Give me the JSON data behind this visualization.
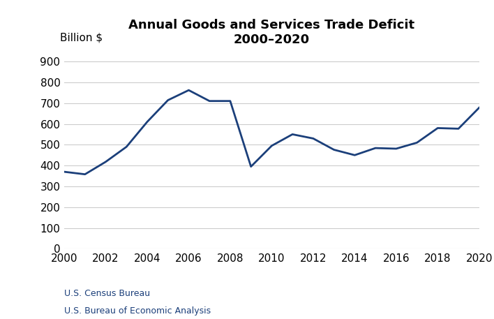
{
  "title_line1": "Annual Goods and Services Trade Deficit",
  "title_line2": "2000–2020",
  "ylabel": "Billion $",
  "years": [
    2000,
    2001,
    2002,
    2003,
    2004,
    2005,
    2006,
    2007,
    2008,
    2009,
    2010,
    2011,
    2012,
    2013,
    2014,
    2015,
    2016,
    2017,
    2018,
    2019,
    2020
  ],
  "values": [
    370,
    358,
    418,
    490,
    610,
    714,
    762,
    710,
    710,
    395,
    495,
    550,
    530,
    476,
    450,
    484,
    481,
    510,
    580,
    577,
    678
  ],
  "line_color": "#1B3F7A",
  "line_width": 2.0,
  "xlim": [
    2000,
    2020
  ],
  "ylim": [
    0,
    950
  ],
  "yticks": [
    0,
    100,
    200,
    300,
    400,
    500,
    600,
    700,
    800,
    900
  ],
  "xticks": [
    2000,
    2002,
    2004,
    2006,
    2008,
    2010,
    2012,
    2014,
    2016,
    2018,
    2020
  ],
  "grid_color": "#cccccc",
  "source_line1": "U.S. Bureau of Economic Analysis",
  "source_line2": "U.S. Census Bureau",
  "source_color": "#1B3F7A",
  "background_color": "#ffffff",
  "title_fontsize": 13,
  "tick_fontsize": 11,
  "ylabel_fontsize": 11,
  "source_fontsize": 9
}
